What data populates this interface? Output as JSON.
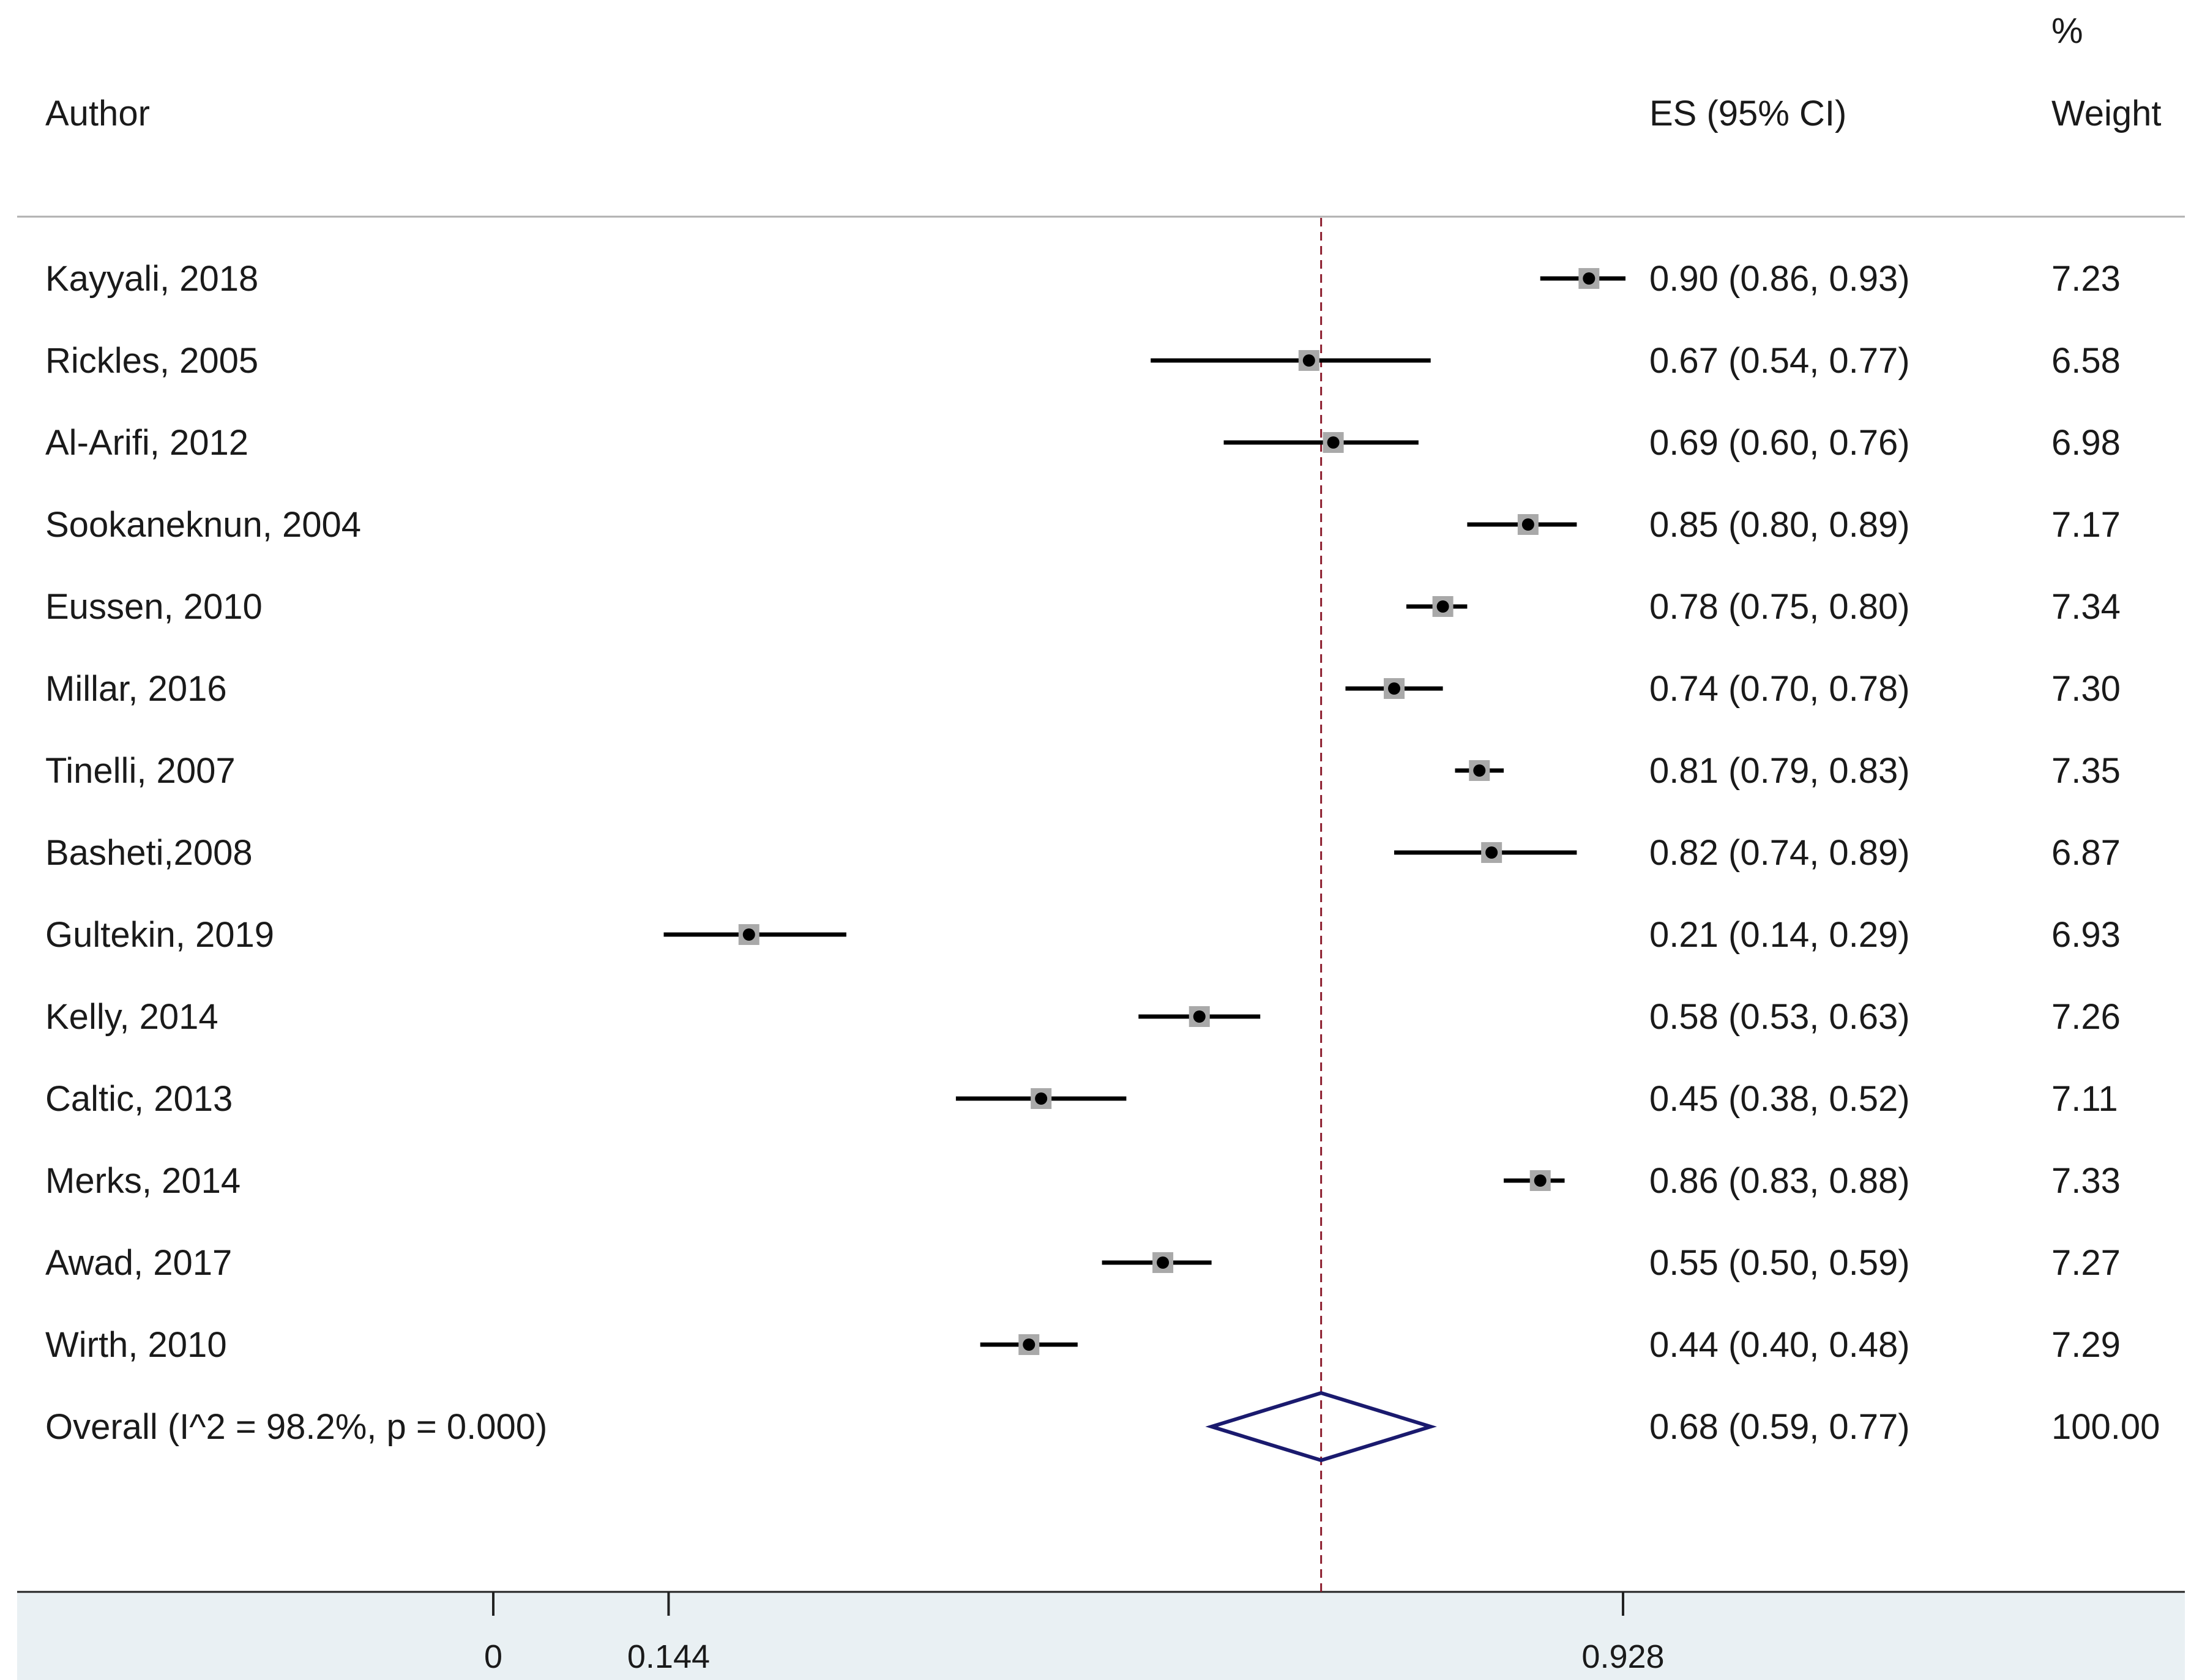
{
  "headers": {
    "author": "Author",
    "es": "ES (95% CI)",
    "weight_pct": "%",
    "weight": "Weight"
  },
  "chart_data": {
    "type": "forest",
    "x_ticks": [
      "0",
      "0.144",
      "0.928"
    ],
    "x_tick_values": [
      0,
      0.144,
      0.928
    ],
    "xlim": [
      -0.4,
      1.4
    ],
    "reference_line": 0.68,
    "grid": false,
    "studies": [
      {
        "author": "Kayyali, 2018",
        "es": 0.9,
        "lo": 0.86,
        "hi": 0.93,
        "es_text": "0.90 (0.86, 0.93)",
        "weight": "7.23"
      },
      {
        "author": "Rickles, 2005",
        "es": 0.67,
        "lo": 0.54,
        "hi": 0.77,
        "es_text": "0.67 (0.54, 0.77)",
        "weight": "6.58"
      },
      {
        "author": "Al-Arifi, 2012",
        "es": 0.69,
        "lo": 0.6,
        "hi": 0.76,
        "es_text": "0.69 (0.60, 0.76)",
        "weight": "6.98"
      },
      {
        "author": "Sookaneknun, 2004",
        "es": 0.85,
        "lo": 0.8,
        "hi": 0.89,
        "es_text": "0.85 (0.80, 0.89)",
        "weight": "7.17"
      },
      {
        "author": "Eussen, 2010",
        "es": 0.78,
        "lo": 0.75,
        "hi": 0.8,
        "es_text": "0.78 (0.75, 0.80)",
        "weight": "7.34"
      },
      {
        "author": "Millar, 2016",
        "es": 0.74,
        "lo": 0.7,
        "hi": 0.78,
        "es_text": "0.74 (0.70, 0.78)",
        "weight": "7.30"
      },
      {
        "author": "Tinelli, 2007",
        "es": 0.81,
        "lo": 0.79,
        "hi": 0.83,
        "es_text": "0.81 (0.79, 0.83)",
        "weight": "7.35"
      },
      {
        "author": "Basheti,2008",
        "es": 0.82,
        "lo": 0.74,
        "hi": 0.89,
        "es_text": "0.82 (0.74, 0.89)",
        "weight": "6.87"
      },
      {
        "author": "Gultekin, 2019",
        "es": 0.21,
        "lo": 0.14,
        "hi": 0.29,
        "es_text": "0.21 (0.14, 0.29)",
        "weight": "6.93"
      },
      {
        "author": "Kelly, 2014",
        "es": 0.58,
        "lo": 0.53,
        "hi": 0.63,
        "es_text": "0.58 (0.53, 0.63)",
        "weight": "7.26"
      },
      {
        "author": "Caltic, 2013",
        "es": 0.45,
        "lo": 0.38,
        "hi": 0.52,
        "es_text": "0.45 (0.38, 0.52)",
        "weight": "7.11"
      },
      {
        "author": "Merks, 2014",
        "es": 0.86,
        "lo": 0.83,
        "hi": 0.88,
        "es_text": "0.86 (0.83, 0.88)",
        "weight": "7.33"
      },
      {
        "author": "Awad, 2017",
        "es": 0.55,
        "lo": 0.5,
        "hi": 0.59,
        "es_text": "0.55 (0.50, 0.59)",
        "weight": "7.27"
      },
      {
        "author": "Wirth, 2010",
        "es": 0.44,
        "lo": 0.4,
        "hi": 0.48,
        "es_text": "0.44 (0.40, 0.48)",
        "weight": "7.29"
      }
    ],
    "overall": {
      "label": "Overall  (I^2 = 98.2%, p = 0.000)",
      "es": 0.68,
      "lo": 0.59,
      "hi": 0.77,
      "es_text": "0.68 (0.59, 0.77)",
      "weight": "100.00"
    }
  },
  "colors": {
    "reference_line": "#8b1a2b",
    "diamond": "#1a1a6e",
    "marker_box": "#a9a9a9",
    "axis_band": "#e9f0f3"
  }
}
